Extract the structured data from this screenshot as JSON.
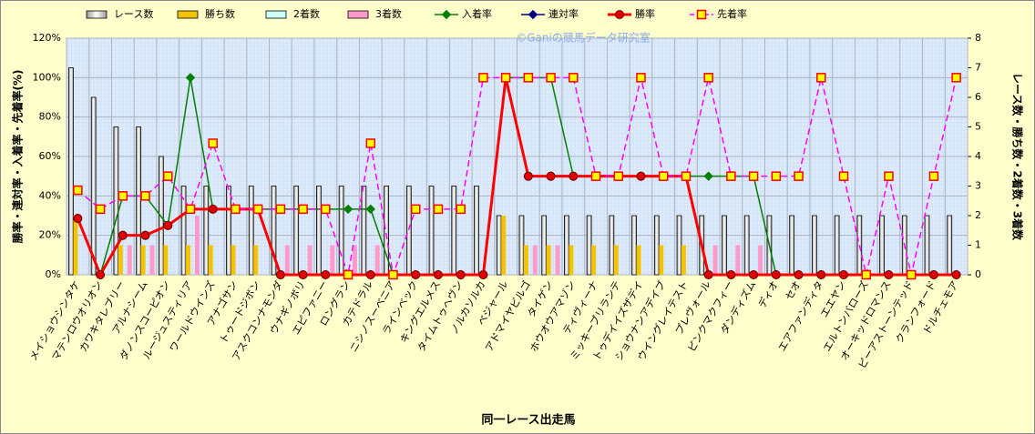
{
  "chart_data": {
    "type": "combo",
    "watermark": "©Ganiの競馬データ研究室",
    "x_label": "同一レース出走馬",
    "y_label": "勝率・連対率・入着率・先着率(%)",
    "y2_label": "レース数・勝ち数・2着数・3着数",
    "categories": [
      "メイショウシンタケ",
      "マテンロウオリオン",
      "カワキタレブリー",
      "アルナシーム",
      "ダノンスコーピオン",
      "ルージュスティリア",
      "ワールドウインズ",
      "アナゴサン",
      "トゥードジボン",
      "アスクコンナモンダ",
      "ウナギノボリ",
      "エピファニー",
      "ロングラン",
      "カテドラル",
      "ニシノスーベニア",
      "ラインベック",
      "キングエルメス",
      "タイムトゥヘヴン",
      "ノルカソルカ",
      "ベジャール",
      "アドマイヤビルゴ",
      "タイゲン",
      "ホウオウアマゾン",
      "ティヴィーナ",
      "ミッキーブリランテ",
      "トゥデイイズザデイ",
      "ショウナンアデイブ",
      "ウイングレイテスト",
      "プレヴォール",
      "ピンクマクフィー",
      "ダンディズム",
      "ディオ",
      "セオ",
      "エアファンディタ",
      "エエヤン",
      "エルトンバローズ",
      "オーキッドロマンス",
      "ピーアストーンテッド",
      "クランフォード",
      "ドルチェモア"
    ],
    "ylim": [
      0,
      120
    ],
    "yticks": [
      {
        "value": 0,
        "label": "0%"
      },
      {
        "value": 20,
        "label": "20%"
      },
      {
        "value": 40,
        "label": "40%"
      },
      {
        "value": 60,
        "label": "60%"
      },
      {
        "value": 80,
        "label": "80%"
      },
      {
        "value": 100,
        "label": "100%"
      },
      {
        "value": 120,
        "label": "120%"
      }
    ],
    "y2lim": [
      0,
      8
    ],
    "y2ticks": [
      0,
      1,
      2,
      3,
      4,
      5,
      6,
      7,
      8
    ],
    "grid": true,
    "series": [
      {
        "name": "レース数",
        "type": "bar",
        "axis": "y2",
        "color": "#f0f0f0",
        "values": [
          7,
          6,
          5,
          5,
          4,
          3,
          3,
          3,
          3,
          3,
          3,
          3,
          3,
          3,
          3,
          3,
          3,
          3,
          3,
          2,
          2,
          2,
          2,
          2,
          2,
          2,
          2,
          2,
          2,
          2,
          2,
          2,
          2,
          2,
          2,
          2,
          2,
          2,
          2,
          2
        ]
      },
      {
        "name": "勝ち数",
        "type": "bar",
        "axis": "y2",
        "color": "#f5c400",
        "values": [
          2,
          0,
          1,
          1,
          1,
          1,
          1,
          1,
          1,
          0,
          0,
          0,
          0,
          0,
          0,
          0,
          0,
          0,
          0,
          2,
          1,
          1,
          1,
          1,
          1,
          1,
          1,
          1,
          0,
          0,
          0,
          0,
          0,
          0,
          0,
          0,
          0,
          0,
          0,
          0
        ]
      },
      {
        "name": "2着数",
        "type": "bar",
        "axis": "y2",
        "color": "#ccffff",
        "values": [
          0,
          0,
          0,
          0,
          0,
          0,
          0,
          0,
          0,
          0,
          0,
          0,
          0,
          0,
          0,
          0,
          0,
          0,
          0,
          0,
          0,
          0,
          0,
          0,
          0,
          0,
          0,
          0,
          0,
          0,
          0,
          0,
          0,
          0,
          0,
          0,
          0,
          0,
          0,
          0
        ]
      },
      {
        "name": "3着数",
        "type": "bar",
        "axis": "y2",
        "color": "#ff99cc",
        "values": [
          0,
          0,
          1,
          1,
          0,
          2,
          0,
          0,
          0,
          1,
          1,
          1,
          1,
          1,
          0,
          0,
          0,
          0,
          0,
          0,
          1,
          1,
          0,
          0,
          0,
          0,
          0,
          0,
          1,
          1,
          1,
          0,
          0,
          0,
          0,
          0,
          0,
          0,
          0,
          0
        ]
      },
      {
        "name": "入着率",
        "type": "line",
        "color": "#008000",
        "marker": "diamond",
        "values": [
          28.6,
          0,
          40,
          40,
          25,
          100,
          33.3,
          33.3,
          33.3,
          33.3,
          33.3,
          33.3,
          33.3,
          33.3,
          0,
          0,
          0,
          0,
          0,
          100,
          100,
          100,
          50,
          50,
          50,
          50,
          50,
          50,
          50,
          50,
          50,
          0,
          0,
          0,
          0,
          0,
          0,
          0,
          0,
          0
        ]
      },
      {
        "name": "連対率",
        "type": "line",
        "color": "#000080",
        "marker": "diamond",
        "values": [
          28.6,
          0,
          20,
          20,
          25,
          33.3,
          33.3,
          33.3,
          33.3,
          0,
          0,
          0,
          0,
          0,
          0,
          0,
          0,
          0,
          0,
          100,
          50,
          50,
          50,
          50,
          50,
          50,
          50,
          50,
          0,
          0,
          0,
          0,
          0,
          0,
          0,
          0,
          0,
          0,
          0,
          0
        ]
      },
      {
        "name": "勝率",
        "type": "line",
        "color": "#ff0000",
        "marker": "circle",
        "width": 3,
        "values": [
          28.6,
          0,
          20,
          20,
          25,
          33.3,
          33.3,
          33.3,
          33.3,
          0,
          0,
          0,
          0,
          0,
          0,
          0,
          0,
          0,
          0,
          100,
          50,
          50,
          50,
          50,
          50,
          50,
          50,
          50,
          0,
          0,
          0,
          0,
          0,
          0,
          0,
          0,
          0,
          0,
          0,
          0
        ]
      },
      {
        "name": "先着率",
        "type": "line",
        "color": "#ff00ff",
        "marker": "square",
        "dash": true,
        "values": [
          42.9,
          33.3,
          40,
          40,
          50,
          33.3,
          66.7,
          33.3,
          33.3,
          33.3,
          33.3,
          33.3,
          0,
          66.7,
          0,
          33.3,
          33.3,
          33.3,
          100,
          100,
          100,
          100,
          100,
          50,
          50,
          100,
          50,
          50,
          100,
          50,
          50,
          50,
          50,
          100,
          50,
          0,
          50,
          0,
          50,
          100
        ]
      }
    ]
  }
}
